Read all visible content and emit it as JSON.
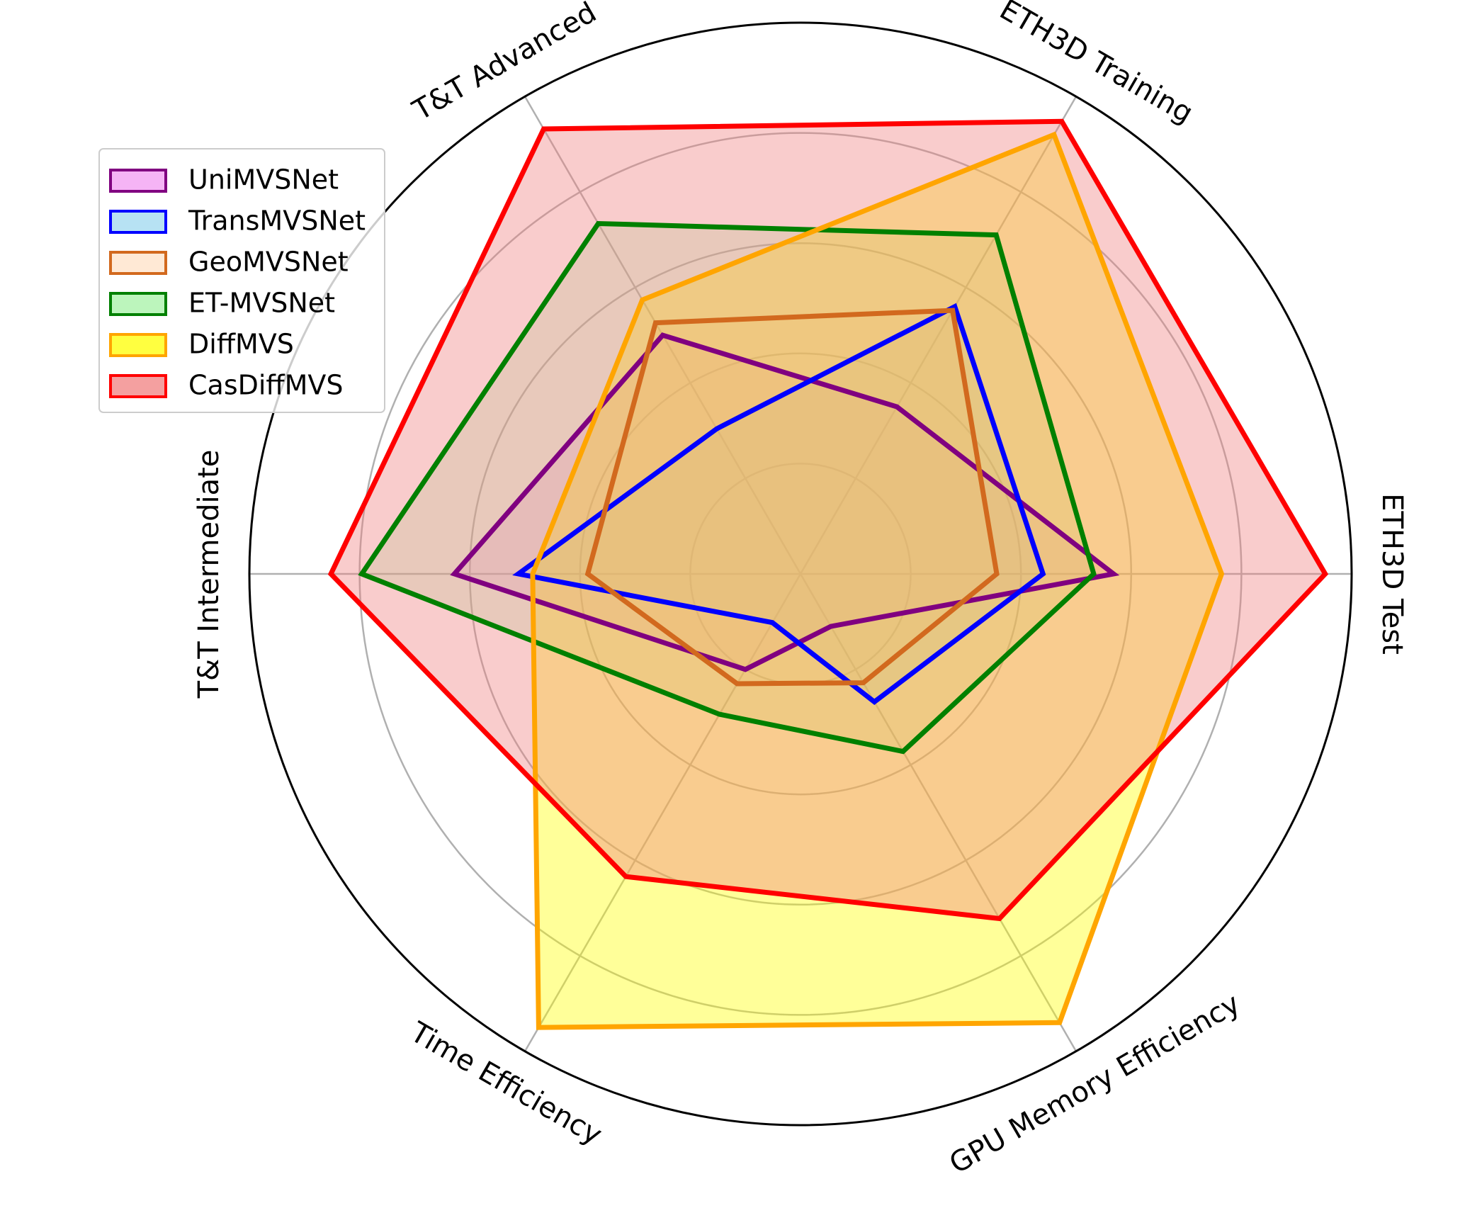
{
  "chart_data": {
    "type": "radar",
    "title": "",
    "axes": [
      "ETH3D Test",
      "ETH3D Training",
      "T&T Advanced",
      "T&T Intermediate",
      "Time Efficiency",
      "GPU Memory Efficiency"
    ],
    "rlim": [
      0,
      5
    ],
    "ring_values": [
      1,
      2,
      3,
      4
    ],
    "grid": true,
    "legend_placement": "upper-left",
    "series": [
      {
        "name": "UniMVSNet",
        "values": [
          2.84,
          1.75,
          2.5,
          3.14,
          1.0,
          0.55
        ],
        "edge_color": "#800080",
        "fill_color": "#EE82EE",
        "fill_opacity": 0.25
      },
      {
        "name": "TransMVSNet",
        "values": [
          2.2,
          2.8,
          1.52,
          2.56,
          0.51,
          1.34
        ],
        "edge_color": "#0000FF",
        "fill_color": "#87CEEB",
        "fill_opacity": 0.25
      },
      {
        "name": "GeoMVSNet",
        "values": [
          1.78,
          2.76,
          2.63,
          1.93,
          1.15,
          1.14
        ],
        "edge_color": "#D2691E",
        "fill_color": "#FFDAB9",
        "fill_opacity": 0.25
      },
      {
        "name": "ET-MVSNet",
        "values": [
          2.66,
          3.55,
          3.67,
          3.98,
          1.47,
          1.86
        ],
        "edge_color": "#008000",
        "fill_color": "#90EE90",
        "fill_opacity": 0.25
      },
      {
        "name": "DiffMVS",
        "values": [
          3.82,
          4.6,
          2.87,
          2.43,
          4.75,
          4.7
        ],
        "edge_color": "#FFA500",
        "fill_color": "#FFFF00",
        "fill_opacity": 0.4
      },
      {
        "name": "CasDiffMVS",
        "values": [
          4.76,
          4.74,
          4.66,
          4.26,
          3.17,
          3.61
        ],
        "edge_color": "#FF0000",
        "fill_color": "#F08080",
        "fill_opacity": 0.4
      }
    ]
  }
}
